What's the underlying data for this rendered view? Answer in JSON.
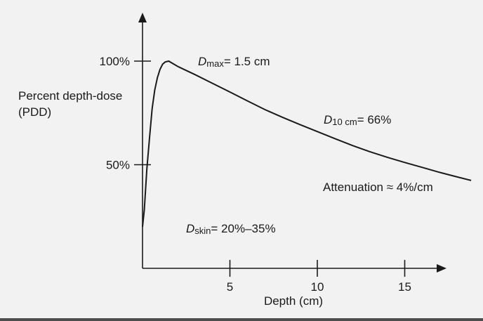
{
  "chart_data": {
    "type": "line",
    "ylabel_lines": [
      "Percent depth-dose",
      "(PDD)"
    ],
    "xlabel": "Depth (cm)",
    "xlim": [
      0,
      19
    ],
    "ylim": [
      0,
      120
    ],
    "x_ticks": [
      5,
      10,
      15
    ],
    "x_tick_labels": [
      "5",
      "10",
      "15"
    ],
    "y_ticks": [
      50,
      100
    ],
    "y_tick_labels": [
      "50%",
      "100%"
    ],
    "series": [
      {
        "x": [
          0,
          0.1,
          0.25,
          0.4,
          0.55,
          0.7,
          0.85,
          1.0,
          1.15,
          1.3,
          1.5,
          2,
          3,
          4,
          5,
          6,
          7,
          8,
          9,
          10,
          11,
          12,
          13,
          14,
          15,
          16,
          17,
          18,
          18.8
        ],
        "y": [
          20,
          28,
          48,
          63,
          77,
          86,
          92,
          96,
          98.5,
          99.6,
          100,
          97.5,
          93.5,
          89.3,
          85.1,
          80.8,
          76.6,
          72.9,
          69.4,
          66,
          62.6,
          59.3,
          56.3,
          53.6,
          51.1,
          48.7,
          46.3,
          44.1,
          42.4
        ]
      }
    ],
    "annotations": [
      {
        "main": "D",
        "sub": "max",
        "rest": "= 1.5 cm"
      },
      {
        "main": "D",
        "sub": "10 cm",
        "rest": "= 66%"
      },
      {
        "main": "",
        "sub": "",
        "rest": "Attenuation ≈ 4%/cm"
      },
      {
        "main": "D",
        "sub": "skin",
        "rest": "= 20%–35%"
      }
    ]
  }
}
